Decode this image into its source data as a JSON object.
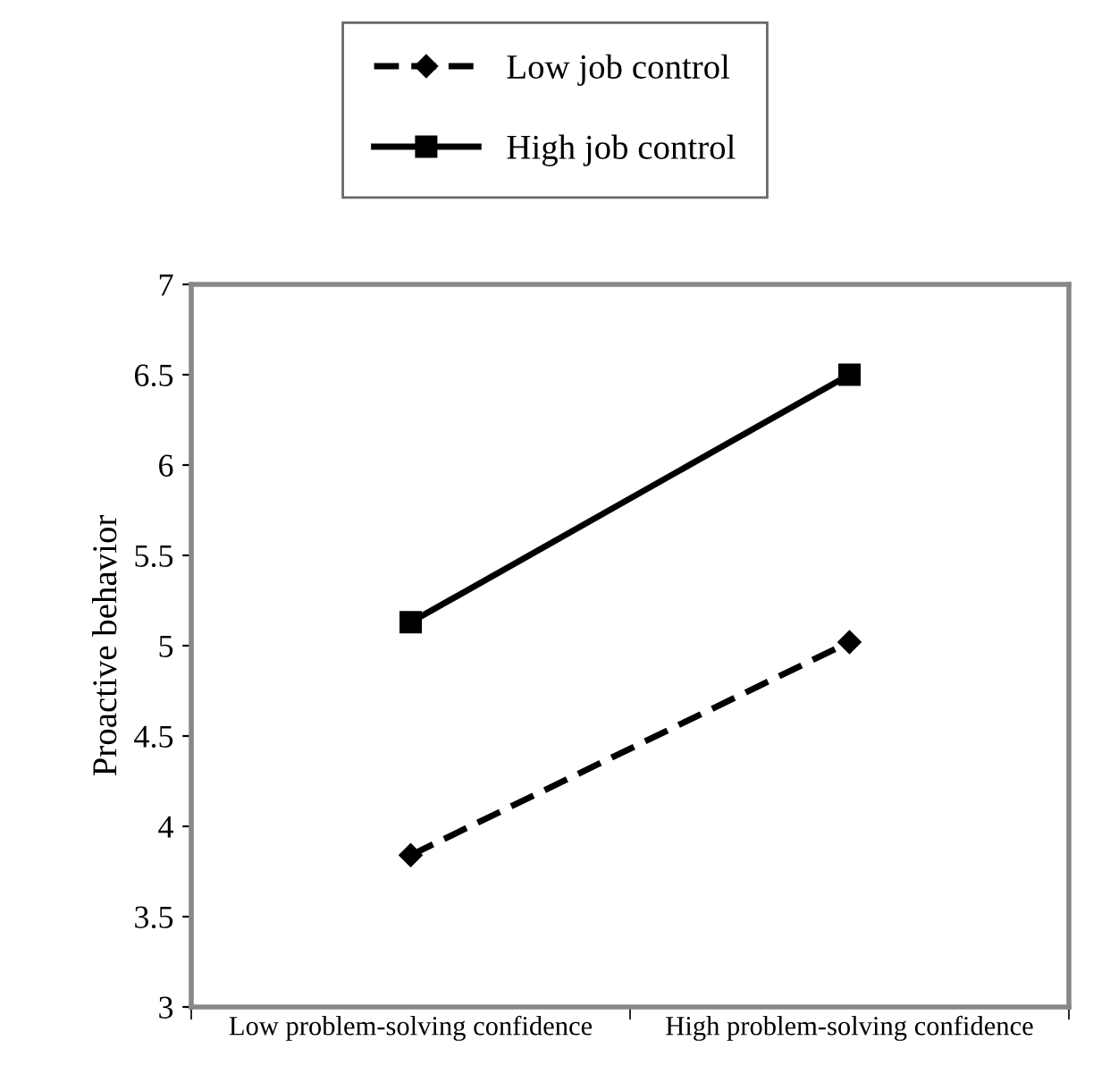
{
  "chart_data": {
    "type": "line",
    "ylabel": "Proactive behavior",
    "categories": [
      "Low problem-solving confidence",
      "High problem-solving confidence"
    ],
    "series": [
      {
        "name": "Low job control",
        "color": "#000000",
        "values": [
          3.84,
          5.02
        ],
        "line_style": "dashed",
        "marker": "diamond"
      },
      {
        "name": "High job control",
        "color": "#000000",
        "values": [
          5.13,
          6.5
        ],
        "line_style": "solid",
        "marker": "square"
      }
    ],
    "ylim": [
      3,
      7
    ],
    "yticks": [
      3,
      3.5,
      4,
      4.5,
      5,
      5.5,
      6,
      6.5,
      7
    ],
    "grid": false,
    "legend": "top"
  }
}
